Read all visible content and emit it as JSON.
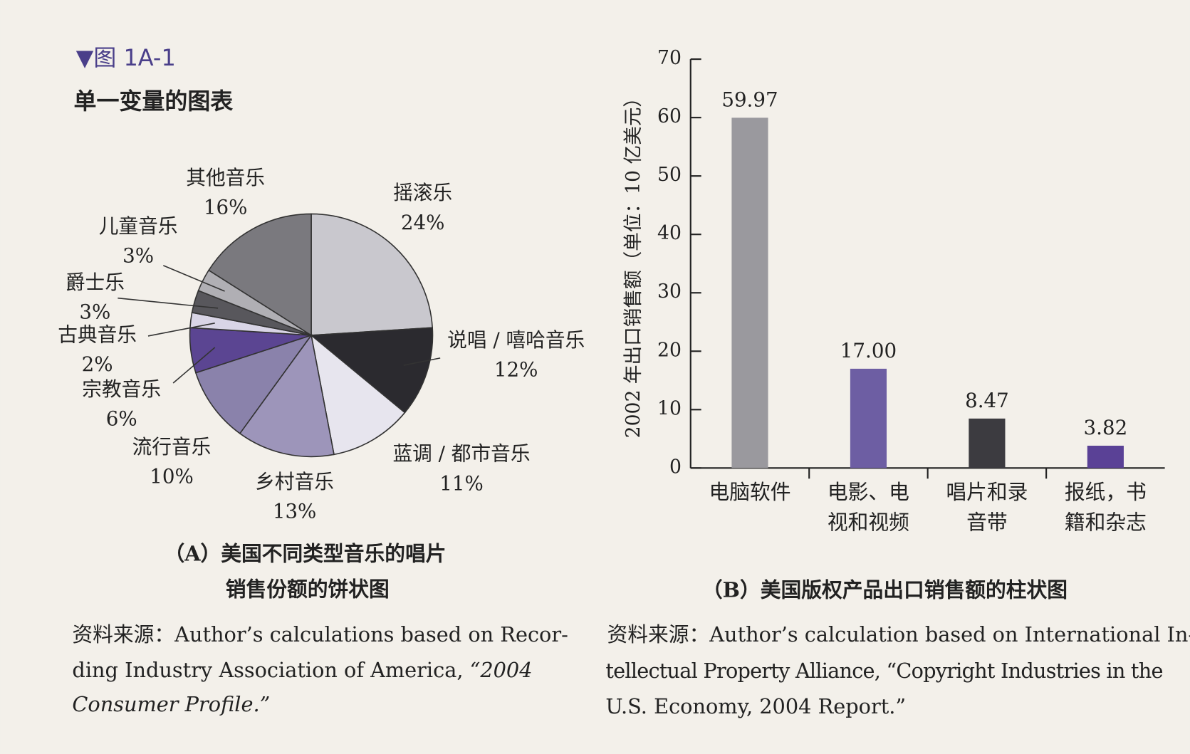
{
  "figure_label": "▼图 1A-1",
  "heading": "单一变量的图表",
  "chart_data": [
    {
      "type": "pie",
      "title": [
        "（A）美国不同类型音乐的唱片",
        "销售份额的饼状图"
      ],
      "categories": [
        "摇滚乐",
        "说唱 / 嘻哈音乐",
        "蓝调 / 都市音乐",
        "乡村音乐",
        "流行音乐",
        "宗教音乐",
        "古典音乐",
        "爵士乐",
        "儿童音乐",
        "其他音乐"
      ],
      "values": [
        24,
        12,
        11,
        13,
        10,
        6,
        2,
        3,
        3,
        16
      ],
      "value_labels": [
        "24%",
        "12%",
        "11%",
        "13%",
        "10%",
        "6%",
        "2%",
        "3%",
        "3%",
        "16%"
      ],
      "colors": [
        "#c9c8ce",
        "#2b2a2f",
        "#e7e5ee",
        "#9d95ba",
        "#8a82ab",
        "#5b4592",
        "#d9d5e6",
        "#58575c",
        "#b0afb4",
        "#7a797e"
      ],
      "source": {
        "label": "资料来源：",
        "lines": [
          [
            "Author’s calculations based on Recor-"
          ],
          [
            "ding Industry Association of America, ",
            "“2004"
          ],
          [
            "Consumer Profile.”"
          ]
        ]
      }
    },
    {
      "type": "bar",
      "title": "（B）美国版权产品出口销售额的柱状图",
      "ylabel": "2002 年出口销售额（单位：10 亿美元）",
      "categories": [
        [
          "电脑软件"
        ],
        [
          "电影、电",
          "视和视频"
        ],
        [
          "唱片和录",
          "音带"
        ],
        [
          "报纸，书",
          "籍和杂志"
        ]
      ],
      "values": [
        59.97,
        17,
        8.47,
        3.82
      ],
      "value_labels": [
        "59.97",
        "17.00",
        "8.47",
        "3.82"
      ],
      "colors": [
        "#9a999e",
        "#6d5ea3",
        "#3c3b40",
        "#5a4196"
      ],
      "ylim": [
        0,
        70
      ],
      "yticks": [
        0,
        10,
        20,
        30,
        40,
        50,
        60,
        70
      ],
      "source": {
        "label": "资料来源：",
        "lines": [
          "Author’s calculation based on International In-",
          "tellectual Property Alliance, “Copyright Industries in the",
          "U.S. Economy, 2004 Report.”"
        ]
      }
    }
  ]
}
